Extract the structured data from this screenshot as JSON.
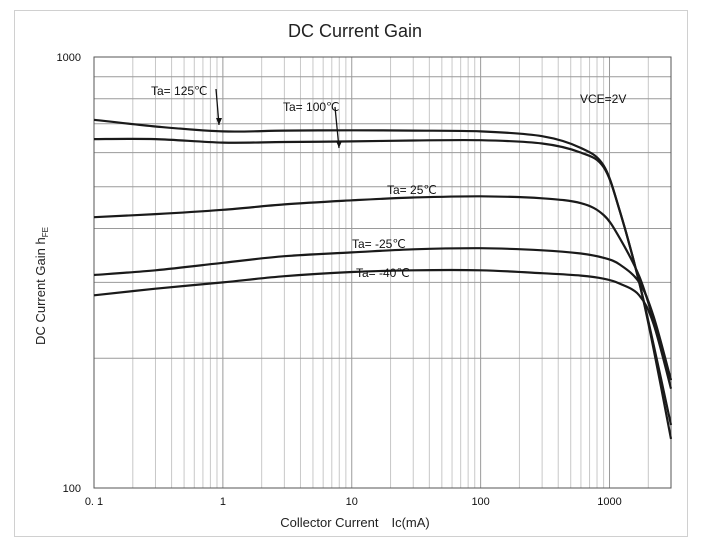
{
  "chart_data": {
    "type": "line",
    "title": "DC Current Gain",
    "xlabel": "Collector Current　Ic(mA)",
    "ylabel": "DC Current  Gain  h",
    "ylabel_sub": "FE",
    "xscale": "log",
    "yscale": "log",
    "xlim": [
      0.1,
      3000
    ],
    "ylim": [
      100,
      1000
    ],
    "x_tick_labels": [
      "0. 1",
      "1",
      "10",
      "100",
      "1000"
    ],
    "y_tick_labels": [
      "100",
      "1000"
    ],
    "grid": true,
    "annotation": "VCE=2V",
    "series": [
      {
        "name": "Ta= 125℃",
        "x": [
          0.1,
          0.3,
          1,
          3,
          10,
          30,
          100,
          300,
          600,
          900,
          1200,
          1700,
          2200,
          3000
        ],
        "y": [
          715,
          690,
          672,
          675,
          676,
          675,
          672,
          655,
          615,
          560,
          440,
          300,
          210,
          130
        ]
      },
      {
        "name": "Ta= 100℃",
        "x": [
          0.1,
          0.3,
          1,
          3,
          10,
          30,
          100,
          300,
          600,
          900,
          1200,
          1700,
          2200,
          3000
        ],
        "y": [
          645,
          645,
          633,
          635,
          637,
          640,
          641,
          630,
          600,
          555,
          440,
          300,
          215,
          140
        ]
      },
      {
        "name": "Ta= 25℃",
        "x": [
          0.1,
          0.3,
          1,
          3,
          10,
          30,
          100,
          300,
          600,
          900,
          1200,
          1700,
          2200,
          3000
        ],
        "y": [
          425,
          432,
          442,
          455,
          465,
          472,
          475,
          470,
          458,
          430,
          380,
          310,
          245,
          178
        ]
      },
      {
        "name": "Ta= -25℃",
        "x": [
          0.1,
          0.3,
          1,
          3,
          10,
          30,
          100,
          300,
          600,
          900,
          1200,
          1700,
          2200,
          3000
        ],
        "y": [
          312,
          320,
          333,
          345,
          352,
          358,
          360,
          356,
          350,
          342,
          330,
          300,
          250,
          178
        ]
      },
      {
        "name": "Ta= -40℃",
        "x": [
          0.1,
          0.3,
          1,
          3,
          10,
          30,
          100,
          300,
          600,
          900,
          1200,
          1700,
          2200,
          3000
        ],
        "y": [
          280,
          290,
          300,
          310,
          317,
          320,
          320,
          315,
          311,
          306,
          298,
          280,
          240,
          170
        ]
      }
    ]
  }
}
